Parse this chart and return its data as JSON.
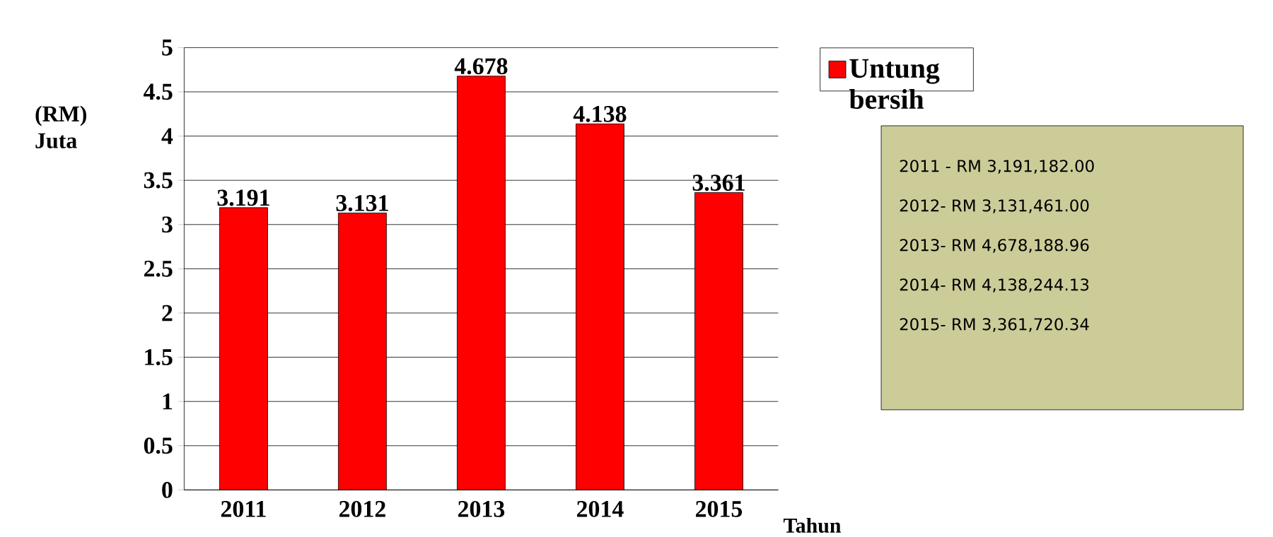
{
  "chart_data": {
    "type": "bar",
    "categories": [
      "2011",
      "2012",
      "2013",
      "2014",
      "2015"
    ],
    "series": [
      {
        "name": "Untung bersih",
        "color": "#ff0000",
        "values": [
          3.191,
          3.131,
          4.678,
          4.138,
          3.361
        ]
      }
    ],
    "ylabel": "(RM) Juta",
    "xlabel": "Tahun",
    "ylim": [
      0,
      5
    ],
    "yticks": [
      0,
      0.5,
      1,
      1.5,
      2,
      2.5,
      3,
      3.5,
      4,
      4.5,
      5
    ],
    "grid": "y",
    "legend": "top right",
    "data_labels": true,
    "annotations": [
      "2011 -  RM 3,191,182.00",
      "2012-  RM 3,131,461.00",
      "2013-  RM 4,678,188.96",
      "2014-  RM 4,138,244.13",
      "2015-  RM 3,361,720.34"
    ]
  }
}
